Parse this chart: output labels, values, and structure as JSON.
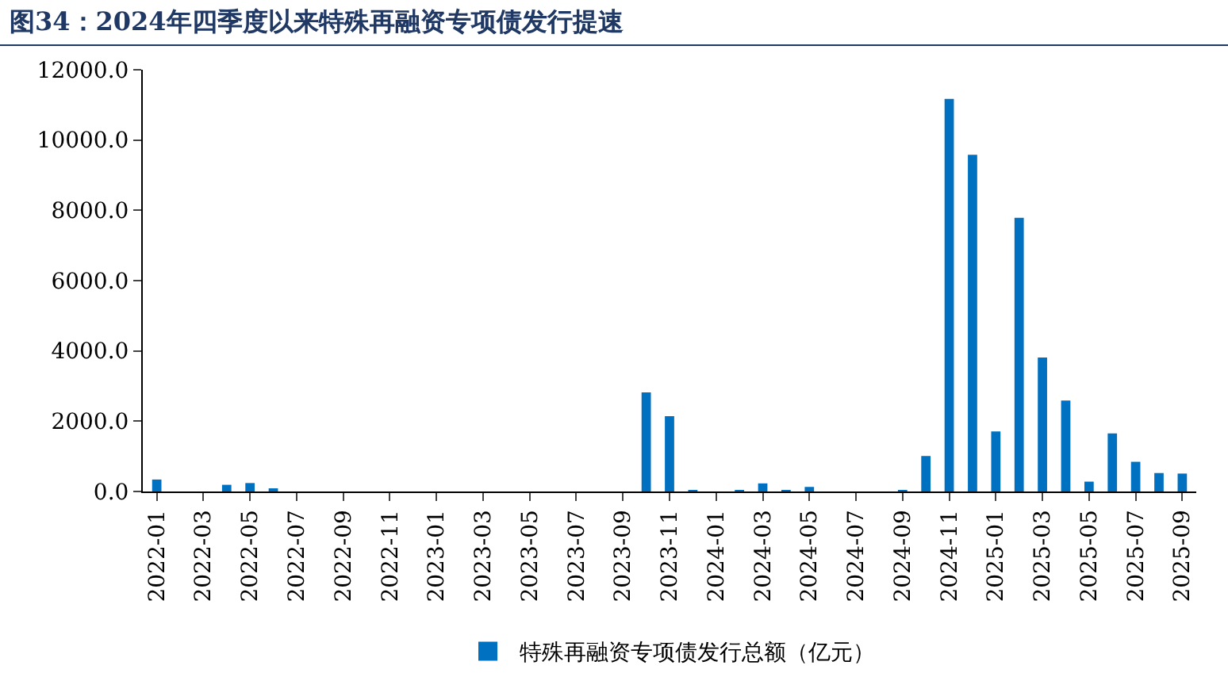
{
  "chart_data": {
    "type": "bar",
    "title": "图34：2024年四季度以来特殊再融资专项债发行提速",
    "categories": [
      "2022-01",
      null,
      "2022-03",
      null,
      "2022-05",
      null,
      "2022-07",
      null,
      "2022-09",
      null,
      "2022-11",
      null,
      "2023-01",
      null,
      "2023-03",
      null,
      "2023-05",
      null,
      "2023-07",
      null,
      "2023-09",
      null,
      "2023-11",
      null,
      "2024-01",
      null,
      "2024-03",
      null,
      "2024-05",
      null,
      "2024-07",
      null,
      "2024-09",
      null,
      "2024-11",
      null,
      "2025-01",
      null,
      "2025-03",
      null,
      "2025-05",
      null,
      "2025-07",
      null,
      "2025-09"
    ],
    "series": [
      {
        "name": "特殊再融资专项债发行总额（亿元）",
        "color": "#0070c0",
        "values": [
          340,
          0,
          0,
          190,
          240,
          90,
          0,
          0,
          0,
          0,
          0,
          0,
          0,
          0,
          0,
          0,
          0,
          0,
          0,
          0,
          0,
          2820,
          2140,
          20,
          0,
          20,
          230,
          20,
          130,
          0,
          0,
          0,
          20,
          1010,
          11170,
          9580,
          1710,
          7790,
          3810,
          2590,
          280,
          1650,
          845,
          525,
          510
        ]
      }
    ],
    "ylim": [
      0,
      12000
    ],
    "yticks": [
      {
        "value": 0,
        "label": "0.0"
      },
      {
        "value": 2000,
        "label": "2000.0"
      },
      {
        "value": 4000,
        "label": "4000.0"
      },
      {
        "value": 6000,
        "label": "6000.0"
      },
      {
        "value": 8000,
        "label": "8000.0"
      },
      {
        "value": 10000,
        "label": "10000.0"
      },
      {
        "value": 12000,
        "label": "12000.0"
      }
    ],
    "grid": false,
    "legend": "bottom"
  }
}
